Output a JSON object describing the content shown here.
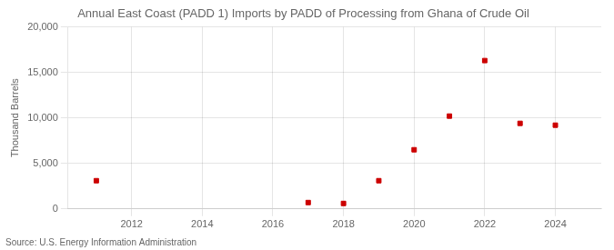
{
  "chart_data": {
    "type": "scatter",
    "title": "Annual East Coast (PADD 1) Imports by PADD of Processing from Ghana of Crude Oil",
    "ylabel": "Thousand Barrels",
    "annotations": [
      "Source: U.S. Energy Information Administration"
    ],
    "x": [
      2011,
      2017,
      2018,
      2019,
      2020,
      2021,
      2022,
      2023,
      2024
    ],
    "values": [
      3100,
      700,
      600,
      3100,
      6500,
      10200,
      16300,
      9400,
      9200
    ],
    "color": "#cc0000",
    "marker": "square",
    "xlim": [
      2010.2,
      2025.3
    ],
    "ylim": [
      0,
      20000
    ],
    "xticks": [
      2012,
      2014,
      2016,
      2018,
      2020,
      2022,
      2024
    ],
    "yticks": [
      0,
      {
        "value": 5000,
        "label": "5,000"
      },
      {
        "value": 10000,
        "label": "10,000"
      },
      {
        "value": 15000,
        "label": "15,000"
      },
      {
        "value": 20000,
        "label": "20,000"
      }
    ],
    "grid": true
  }
}
